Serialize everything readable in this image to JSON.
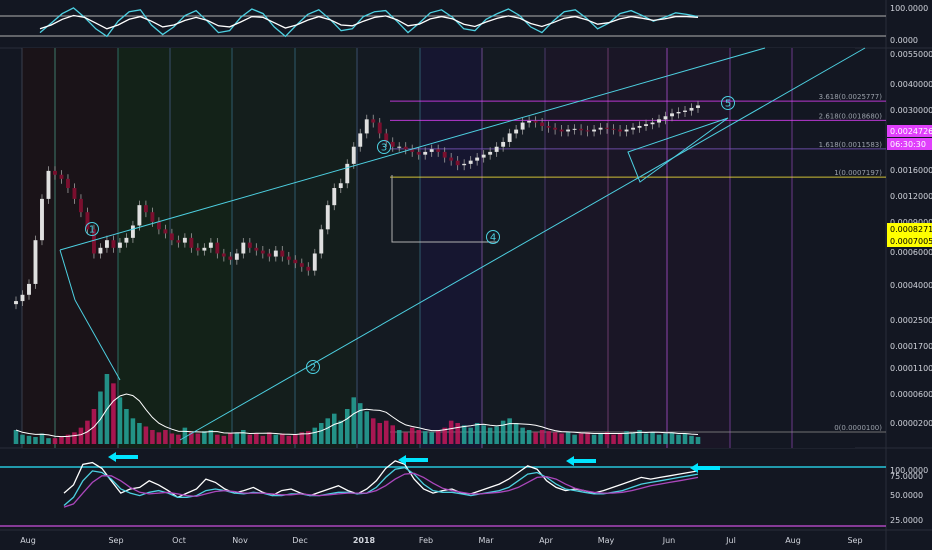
{
  "chart_data": [
    {
      "type": "line",
      "panel": "top-oscillator",
      "ylim": [
        0,
        100
      ],
      "y_ticks": [
        "100.0000",
        "0.0000"
      ],
      "series": [
        {
          "color": "#4dd0e1",
          "values": [
            30,
            55,
            80,
            95,
            70,
            40,
            20,
            60,
            85,
            90,
            50,
            25,
            45,
            75,
            88,
            60,
            30,
            35,
            70,
            92,
            80,
            45,
            20,
            50,
            78,
            90,
            65,
            35,
            40,
            72,
            85,
            88,
            60,
            30,
            55,
            82,
            90,
            70,
            40,
            35,
            65,
            80,
            92,
            75,
            45,
            30,
            60,
            85,
            90,
            68,
            40,
            55,
            80,
            88,
            75,
            60,
            70,
            82,
            78,
            72
          ]
        },
        {
          "color": "#ffffff",
          "values": [
            40,
            50,
            65,
            75,
            70,
            55,
            40,
            50,
            65,
            72,
            60,
            45,
            50,
            62,
            70,
            62,
            48,
            45,
            58,
            72,
            70,
            56,
            42,
            50,
            63,
            72,
            64,
            50,
            48,
            60,
            70,
            74,
            64,
            48,
            52,
            66,
            72,
            66,
            52,
            46,
            58,
            68,
            74,
            68,
            54,
            46,
            56,
            68,
            72,
            64,
            52,
            56,
            66,
            72,
            68,
            62,
            66,
            72,
            72,
            70
          ]
        }
      ]
    },
    {
      "type": "candlestick",
      "panel": "price",
      "scale": "log",
      "ylim": [
        1e-05,
        0.0055
      ],
      "y_ticks": [
        "0.0055000",
        "0.0040000",
        "0.0030000",
        "0.0016000",
        "0.0012000",
        "0.0009000",
        "0.0006000",
        "0.0004000",
        "0.0002500",
        "0.0001700",
        "0.0001100",
        "0.0000600",
        "0.0000200"
      ],
      "x_ticks": [
        "Aug",
        "Sep",
        "Oct",
        "Nov",
        "Dec",
        "2018",
        "Feb",
        "Mar",
        "Apr",
        "May",
        "Jun",
        "Jul",
        "Aug",
        "Sep"
      ],
      "close": [
        9e-05,
        0.0001,
        0.00012,
        0.00025,
        0.0005,
        0.0008,
        0.00075,
        0.0007,
        0.0006,
        0.0005,
        0.0004,
        0.0003,
        0.0002,
        0.00022,
        0.00025,
        0.00022,
        0.00024,
        0.00026,
        0.00032,
        0.00045,
        0.0004,
        0.00034,
        0.0003,
        0.00028,
        0.00025,
        0.00024,
        0.00026,
        0.00022,
        0.00021,
        0.00022,
        0.00024,
        0.0002,
        0.00019,
        0.00018,
        0.0002,
        0.00024,
        0.00022,
        0.00021,
        0.0002,
        0.00019,
        0.00021,
        0.00019,
        0.00018,
        0.00017,
        0.00016,
        0.00015,
        0.0002,
        0.0003,
        0.00045,
        0.0006,
        0.00065,
        0.0009,
        0.0012,
        0.0015,
        0.0019,
        0.0018,
        0.0015,
        0.0013,
        0.0012,
        0.0012,
        0.00115,
        0.0011,
        0.00105,
        0.0011,
        0.00115,
        0.0011,
        0.001,
        0.00095,
        0.00088,
        0.0009,
        0.00095,
        0.001,
        0.00105,
        0.0011,
        0.0012,
        0.0013,
        0.0015,
        0.0016,
        0.0018,
        0.00185,
        0.0018,
        0.0017,
        0.00165,
        0.0016,
        0.00155,
        0.0016,
        0.00162,
        0.00158,
        0.00155,
        0.0016,
        0.00165,
        0.00162,
        0.0016,
        0.00155,
        0.0016,
        0.00165,
        0.0017,
        0.00175,
        0.0018,
        0.0019,
        0.002,
        0.0021,
        0.00215,
        0.0022,
        0.0023,
        0.0024
      ],
      "volume": [
        12,
        8,
        7,
        6,
        9,
        5,
        5,
        6,
        8,
        10,
        14,
        20,
        30,
        45,
        60,
        52,
        40,
        30,
        22,
        18,
        15,
        12,
        10,
        12,
        9,
        8,
        14,
        10,
        9,
        11,
        12,
        8,
        7,
        9,
        10,
        12,
        8,
        9,
        7,
        10,
        8,
        9,
        7,
        8,
        10,
        11,
        14,
        18,
        22,
        26,
        20,
        30,
        40,
        35,
        28,
        22,
        18,
        20,
        16,
        12,
        10,
        14,
        12,
        11,
        10,
        12,
        14,
        20,
        18,
        16,
        14,
        18,
        16,
        14,
        15,
        20,
        22,
        18,
        14,
        12,
        10,
        12,
        11,
        10,
        9,
        10,
        8,
        9,
        10,
        8,
        9,
        10,
        8,
        9,
        11,
        10,
        12,
        9,
        10,
        8,
        9,
        10,
        8,
        9,
        7,
        6
      ],
      "fib_levels": [
        {
          "ratio": "0",
          "label": "0(0.0000100)",
          "value": 1e-05
        },
        {
          "ratio": "1",
          "label": "1(0.0007197)",
          "value": 0.0007197
        },
        {
          "ratio": "1.618",
          "label": "1.618(0.0011583)",
          "value": 0.0011583
        },
        {
          "ratio": "2.618",
          "label": "2.618(0.0018680)",
          "value": 0.001868
        },
        {
          "ratio": "3.618",
          "label": "3.618(0.0025777)",
          "value": 0.0025777
        }
      ],
      "wave_labels": [
        "1",
        "2",
        "3",
        "4",
        "5"
      ],
      "price_tags": [
        {
          "text": "0.0024726",
          "color": "#e040fb"
        },
        {
          "text": "06:30:30",
          "color": "#e040fb"
        },
        {
          "text": "0.0008271",
          "color": "#ffff00"
        },
        {
          "text": "0.0007005",
          "color": "#ffff00"
        }
      ]
    },
    {
      "type": "line",
      "panel": "bottom-oscillator",
      "ylim": [
        20,
        100
      ],
      "y_ticks": [
        "100.0000",
        "75.0000",
        "50.0000",
        "25.0000"
      ],
      "series": [
        {
          "color": "#ffffff",
          "values": [
            55,
            65,
            90,
            92,
            85,
            70,
            55,
            60,
            62,
            70,
            65,
            58,
            50,
            55,
            60,
            72,
            68,
            60,
            55,
            58,
            62,
            56,
            52,
            58,
            60,
            55,
            52,
            56,
            60,
            64,
            58,
            54,
            60,
            70,
            85,
            94,
            90,
            72,
            60,
            55,
            58,
            60,
            55,
            54,
            58,
            62,
            66,
            72,
            80,
            88,
            84,
            70,
            62,
            58,
            60,
            58,
            55,
            58,
            62,
            66,
            70,
            74,
            72,
            74,
            76,
            78,
            80,
            82
          ]
        },
        {
          "color": "#4dd0e1",
          "values": [
            40,
            50,
            70,
            82,
            80,
            72,
            60,
            55,
            52,
            56,
            58,
            55,
            50,
            50,
            52,
            58,
            60,
            58,
            55,
            54,
            56,
            55,
            52,
            52,
            54,
            54,
            52,
            52,
            54,
            56,
            56,
            54,
            55,
            62,
            74,
            84,
            86,
            78,
            66,
            58,
            56,
            56,
            54,
            52,
            54,
            56,
            58,
            62,
            70,
            78,
            80,
            74,
            66,
            60,
            58,
            56,
            54,
            54,
            56,
            58,
            62,
            66,
            68,
            70,
            72,
            74,
            76,
            78
          ]
        },
        {
          "color": "#ab47bc",
          "values": [
            38,
            42,
            55,
            68,
            76,
            76,
            70,
            62,
            56,
            54,
            55,
            56,
            54,
            52,
            51,
            54,
            57,
            58,
            57,
            55,
            55,
            55,
            54,
            53,
            53,
            54,
            53,
            52,
            53,
            54,
            55,
            55,
            55,
            58,
            64,
            72,
            78,
            79,
            74,
            67,
            61,
            58,
            56,
            54,
            54,
            55,
            56,
            58,
            62,
            68,
            74,
            75,
            72,
            66,
            61,
            58,
            56,
            55,
            55,
            56,
            58,
            61,
            64,
            66,
            68,
            70,
            72,
            74
          ]
        }
      ]
    }
  ]
}
